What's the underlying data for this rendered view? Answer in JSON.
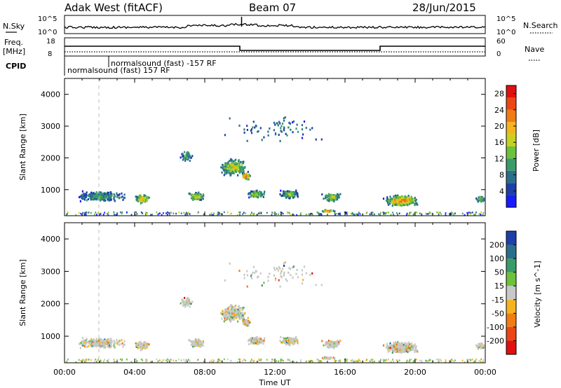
{
  "header": {
    "station": "Adak West (fitACF)",
    "beam": "Beam 07",
    "date": "28/Jun/2015"
  },
  "panels": {
    "nsky_label": "N.Sky",
    "nsky_ticks": [
      "10^5",
      "10^0"
    ],
    "nsearch_label": "N.Search",
    "nsearch_ticks": [
      "10^5",
      "10^0"
    ],
    "freq_label": "Freq.",
    "freq_unit": "[MHz]",
    "freq_ticks": [
      "18",
      "8"
    ],
    "nave_label": "Nave",
    "nave_ticks": [
      "60",
      "0"
    ],
    "cpid_label": "CPID",
    "cpid_entries": [
      "normalsound (fast) -157 RF",
      "normalsound (fast) 157 RF"
    ]
  },
  "colors": {
    "power": [
      "#1a1aff",
      "#1c3fa8",
      "#2a6e8c",
      "#3a9a6a",
      "#6cc23a",
      "#c8d21e",
      "#f5b41e",
      "#f07c14",
      "#ec4614",
      "#e01010"
    ],
    "velocity": [
      "#e01010",
      "#ec4614",
      "#f07c14",
      "#f5b41e",
      "#c8c8c8",
      "#6cc23a",
      "#3a9a6a",
      "#2a6e8c",
      "#1c3fa8"
    ]
  },
  "chart_data": [
    {
      "type": "heatmap",
      "name": "power",
      "xlabel": "Time UT",
      "ylabel": "Slant Range [km]",
      "xlim": [
        "00:00",
        "24:00"
      ],
      "ylim": [
        180,
        4500
      ],
      "yticks": [
        "1000",
        "2000",
        "3000",
        "4000"
      ],
      "colorbar_label": "Power [dB]",
      "colorbar_ticks": [
        "4",
        "8",
        "12",
        "16",
        "20",
        "24",
        "28"
      ],
      "colorbar_range": [
        0,
        30
      ]
    },
    {
      "type": "heatmap",
      "name": "velocity",
      "xlabel": "Time UT",
      "ylabel": "Slant Range [km]",
      "xlim": [
        "00:00",
        "24:00"
      ],
      "ylim": [
        180,
        4500
      ],
      "yticks": [
        "1000",
        "2000",
        "3000",
        "4000"
      ],
      "xticks": [
        "00:00",
        "04:00",
        "08:00",
        "12:00",
        "16:00",
        "20:00",
        "00:00"
      ],
      "colorbar_label": "Velocity [m s^-1]",
      "colorbar_ticks": [
        "200",
        "100",
        "50",
        "15",
        "-15",
        "-50",
        "-100",
        "-200"
      ]
    }
  ]
}
